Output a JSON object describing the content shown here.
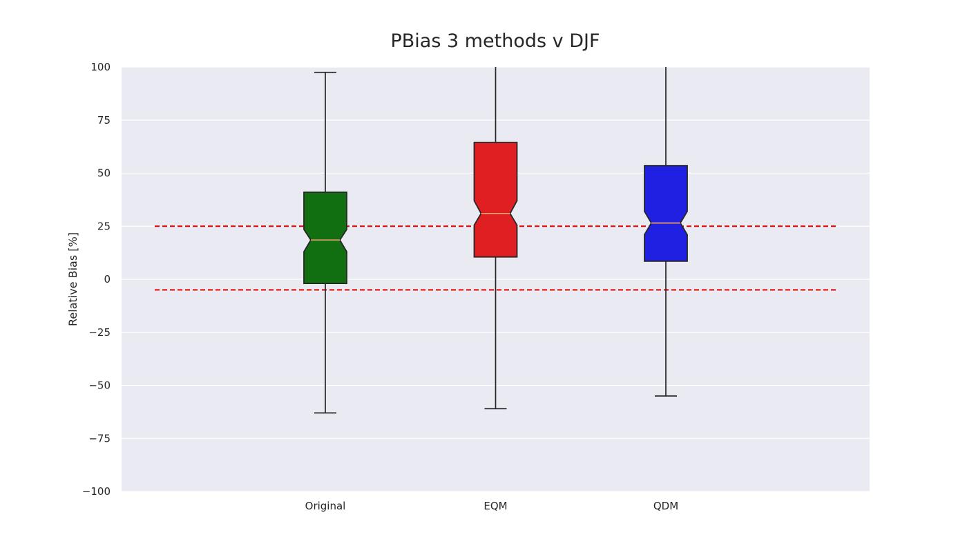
{
  "chart_data": {
    "type": "box",
    "title": "PBias 3 methods v DJF",
    "xlabel": "",
    "ylabel": "Relative Bias [%]",
    "ylim": [
      -100,
      100
    ],
    "yticks": [
      100,
      75,
      50,
      25,
      0,
      -25,
      -50,
      -75,
      -100
    ],
    "ytick_labels": [
      "100",
      "75",
      "50",
      "25",
      "0",
      "−25",
      "−50",
      "−75",
      "−100"
    ],
    "grid": true,
    "notched": true,
    "categories": [
      "Original",
      "EQM",
      "QDM"
    ],
    "boxes": [
      {
        "label": "Original",
        "color": "#116e11",
        "whisker_low": -63,
        "q1": -2,
        "median": 18.5,
        "q3": 41,
        "whisker_high": 97.5,
        "notch_low": 13,
        "notch_high": 23.5
      },
      {
        "label": "EQM",
        "color": "#df1f21",
        "whisker_low": -61,
        "q1": 10.5,
        "median": 31,
        "q3": 64.5,
        "whisker_high": 100,
        "notch_low": 25.5,
        "notch_high": 37
      },
      {
        "label": "QDM",
        "color": "#2020e3",
        "whisker_low": -55,
        "q1": 8.5,
        "median": 26.5,
        "q3": 53.5,
        "whisker_high": 100,
        "notch_low": 21,
        "notch_high": 32
      }
    ],
    "reference_lines": [
      {
        "value": 25,
        "color": "#e00000",
        "style": "dashed"
      },
      {
        "value": -5,
        "color": "#e00000",
        "style": "dashed"
      }
    ],
    "colors": {
      "plot_background": "#eaeaf2",
      "grid": "#ffffff",
      "box_edge": "#262626",
      "median": "#e8a06a",
      "whisker": "#262626"
    }
  }
}
